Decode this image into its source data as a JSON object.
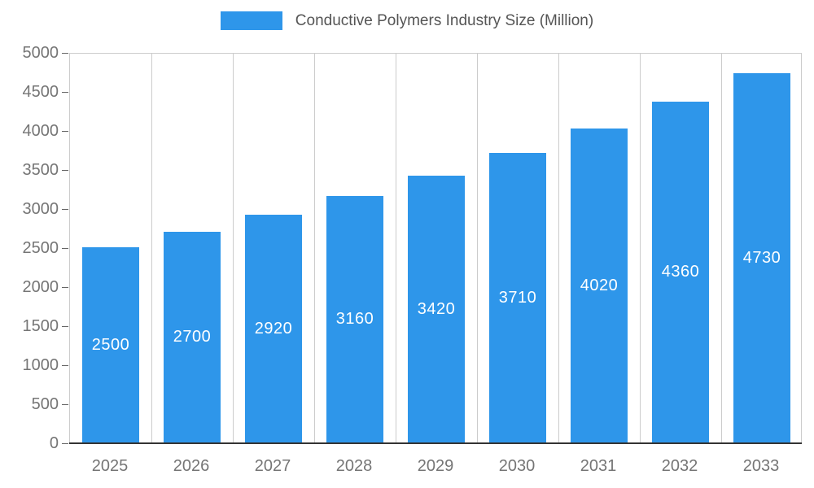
{
  "chart_data": {
    "type": "bar",
    "title": "Conductive Polymers Industry Size (Million)",
    "categories": [
      "2025",
      "2026",
      "2027",
      "2028",
      "2029",
      "2030",
      "2031",
      "2032",
      "2033"
    ],
    "values": [
      2500,
      2700,
      2920,
      3160,
      3420,
      3710,
      4020,
      4360,
      4730
    ],
    "ylim": [
      0,
      5000
    ],
    "yticks": [
      0,
      500,
      1000,
      1500,
      2000,
      2500,
      3000,
      3500,
      4000,
      4500,
      5000
    ],
    "legend_position": "top",
    "grid": "vertical-category-boundaries",
    "colors": {
      "bar": "#2E96EA",
      "value_label": "#FFFFFF",
      "axis_label": "#757575",
      "title": "#555555",
      "gridline": "#CCCCCC",
      "plot_border": "#CCCCCC",
      "baseline": "#333333",
      "tick_mark": "#666666",
      "background": "#FFFFFF"
    }
  }
}
